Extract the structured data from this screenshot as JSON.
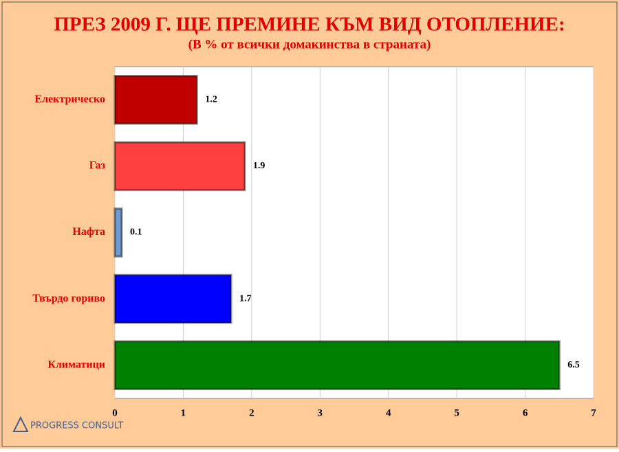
{
  "chart_data": {
    "type": "bar",
    "orientation": "horizontal",
    "title": "ПРЕЗ 2009 Г. ЩЕ ПРЕМИНЕ КЪМ ВИД ОТОПЛЕНИЕ:",
    "subtitle": "(В % от всички домакинства в страната)",
    "categories": [
      "Електрическо",
      "Газ",
      "Нафта",
      "Твърдо гориво",
      "Климатици"
    ],
    "values": [
      1.2,
      1.9,
      0.1,
      1.7,
      6.5
    ],
    "colors": [
      "#c00000",
      "#ff4040",
      "#6f9bd0",
      "#0000ff",
      "#008000"
    ],
    "xlim": [
      0,
      7
    ],
    "xticks": [
      0,
      1,
      2,
      3,
      4,
      5,
      6,
      7
    ],
    "grid": true
  },
  "logo_text": "PROGRESS CONSULT"
}
